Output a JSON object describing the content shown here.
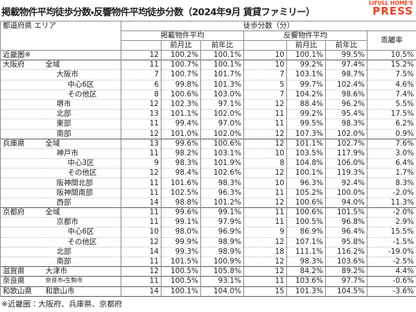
{
  "header": {
    "title": "掲載物件平均徒歩分数・反響物件平均徒歩分数（2024年9月 賃貸ファミリー）",
    "logo": [
      "LIFULL HOME'S",
      "PRESS"
    ]
  },
  "table": {
    "head": {
      "region": "都道府県 エリア",
      "group": "徒歩分数（分）",
      "listed": "掲載物件平均",
      "response": "反響物件平均",
      "gap": "乖離率",
      "sub": [
        "前月比",
        "前年比",
        "前月比",
        "前年比"
      ]
    },
    "rows": [
      {
        "pref": "近畿圏※",
        "cells": [
          12,
          "100.2%",
          "100.1%",
          10,
          "100.1%",
          "99.5%",
          "10.5%"
        ]
      },
      {
        "pref": "大阪府",
        "area": "全域",
        "cells": [
          11,
          "100.7%",
          "100.1%",
          10,
          "99.2%",
          "97.4%",
          "15.2%"
        ]
      },
      {
        "area": "大阪市",
        "cells": [
          7,
          "100.7%",
          "101.7%",
          7,
          "103.1%",
          "98.7%",
          "7.5%"
        ]
      },
      {
        "area": "中心6区",
        "cells": [
          6,
          "99.8%",
          "101.3%",
          5,
          "99.7%",
          "102.4%",
          "4.6%"
        ]
      },
      {
        "area": "その他区",
        "cells": [
          8,
          "100.6%",
          "103.0%",
          7,
          "104.2%",
          "98.6%",
          "7.4%"
        ]
      },
      {
        "area": "堺市",
        "cells": [
          12,
          "102.3%",
          "97.1%",
          12,
          "88.4%",
          "96.2%",
          "5.5%"
        ]
      },
      {
        "area": "北部",
        "cells": [
          13,
          "101.1%",
          "102.0%",
          11,
          "99.2%",
          "95.4%",
          "17.5%"
        ]
      },
      {
        "area": "東部",
        "cells": [
          11,
          "99.4%",
          "97.0%",
          11,
          "99.5%",
          "98.3%",
          "6.2%"
        ]
      },
      {
        "area": "南部",
        "cells": [
          12,
          "101.0%",
          "102.0%",
          12,
          "107.3%",
          "102.0%",
          "0.9%"
        ]
      },
      {
        "pref": "兵庫県",
        "area": "全域",
        "cells": [
          13,
          "99.6%",
          "100.6%",
          12,
          "101.1%",
          "102.7%",
          "7.6%"
        ]
      },
      {
        "area": "神戸市",
        "cells": [
          11,
          "98.2%",
          "103.1%",
          10,
          "103.5%",
          "117.9%",
          "3.0%"
        ]
      },
      {
        "area": "中心3区",
        "cells": [
          9,
          "98.3%",
          "101.9%",
          8,
          "104.8%",
          "106.0%",
          "6.4%"
        ]
      },
      {
        "area": "その他区",
        "cells": [
          12,
          "98.4%",
          "102.6%",
          12,
          "100.1%",
          "119.3%",
          "1.7%"
        ]
      },
      {
        "area": "阪神間北部",
        "cells": [
          11,
          "101.6%",
          "98.3%",
          10,
          "96.3%",
          "92.4%",
          "8.3%"
        ]
      },
      {
        "area": "阪神間南部",
        "cells": [
          11,
          "102.5%",
          "96.3%",
          11,
          "105.2%",
          "100.0%",
          "-2.0%"
        ]
      },
      {
        "area": "西部",
        "cells": [
          14,
          "98.8%",
          "101.2%",
          12,
          "100.6%",
          "94.0%",
          "11.3%"
        ]
      },
      {
        "pref": "京都府",
        "area": "全域",
        "cells": [
          11,
          "99.6%",
          "99.1%",
          11,
          "100.6%",
          "101.5%",
          "-2.0%"
        ]
      },
      {
        "area": "京都市",
        "cells": [
          11,
          "99.1%",
          "97.9%",
          11,
          "100.5%",
          "96.8%",
          "2.9%"
        ]
      },
      {
        "area": "中心6区",
        "cells": [
          10,
          "98.0%",
          "96.9%",
          9,
          "86.9%",
          "96.4%",
          "15.5%"
        ]
      },
      {
        "area": "その他区",
        "cells": [
          12,
          "99.9%",
          "98.9%",
          12,
          "107.1%",
          "95.8%",
          "-1.5%"
        ]
      },
      {
        "area": "北部",
        "cells": [
          14,
          "99.3%",
          "98.9%",
          18,
          "111.1%",
          "116.2%",
          "-19.0%"
        ]
      },
      {
        "area": "南部",
        "cells": [
          11,
          "101.5%",
          "100.9%",
          12,
          "98.3%",
          "103.6%",
          "-2.5%"
        ]
      },
      {
        "pref": "滋賀県",
        "area": "大津市",
        "cells": [
          12,
          "100.5%",
          "105.8%",
          12,
          "84.2%",
          "89.2%",
          "4.4%"
        ]
      },
      {
        "pref": "奈良県",
        "area": "奈良市・生駒市",
        "cells": [
          11,
          "100.5%",
          "93.1%",
          11,
          "103.6%",
          "97.7%",
          "-0.6%"
        ]
      },
      {
        "pref": "和歌山県",
        "area": "和歌山市",
        "cells": [
          14,
          "100.1%",
          "104.0%",
          15,
          "101.3%",
          "104.5%",
          "-3.6%"
        ]
      }
    ]
  },
  "footnote": "※近畿圏：大阪府、兵庫県、京都府"
}
